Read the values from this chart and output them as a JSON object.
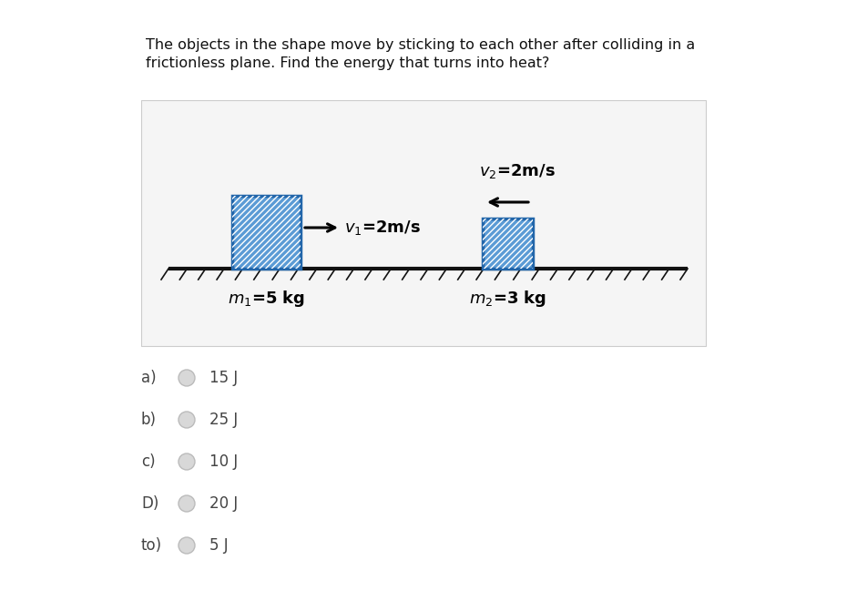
{
  "title_line1": "The objects in the shape move by sticking to each other after colliding in a",
  "title_line2": "frictionless plane. Find the energy that turns into heat?",
  "bg_color": "#ffffff",
  "diagram_bg": "#f5f5f5",
  "diagram_border": "#cccccc",
  "block_fill": "#5b9bd5",
  "block_edge": "#2266aa",
  "hatch_color": "#ffffff",
  "floor_color": "#111111",
  "text_color": "#111111",
  "label_color": "#222222",
  "option_color": "#444444",
  "circle_edge": "#bbbbbb",
  "circle_fill": "#d8d8d8",
  "options": [
    "a)",
    "b)",
    "c)",
    "D)",
    "to)"
  ],
  "answers": [
    "15 J",
    "25 J",
    "10 J",
    "20 J",
    "5 J"
  ],
  "title_fontsize": 11.5,
  "label_fontsize": 11,
  "option_fontsize": 12
}
